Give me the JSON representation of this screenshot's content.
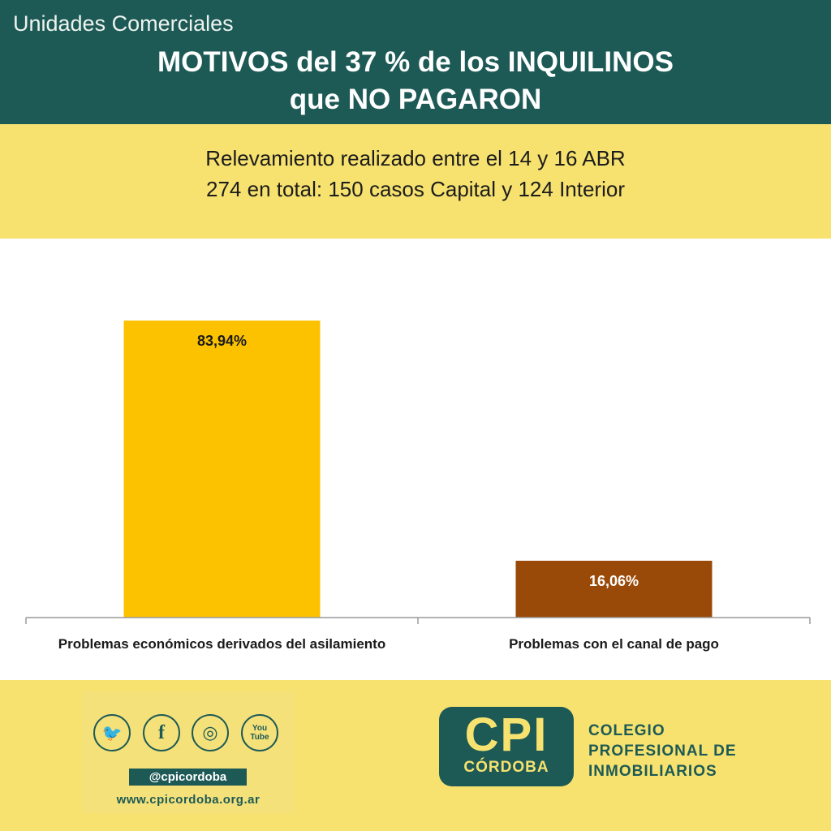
{
  "header": {
    "kicker": "Unidades Comerciales",
    "title_line1": "MOTIVOS del 37 % de los INQUILINOS",
    "title_line2": "que NO PAGARON",
    "background_color": "#1d5a56"
  },
  "subheader": {
    "line1": "Relevamiento realizado entre el 14 y 16 ABR",
    "line2": "274 en total: 150 casos Capital y 124 Interior",
    "background_color": "#f7e26f"
  },
  "chart_data": {
    "type": "bar",
    "categories": [
      "Problemas económicos derivados del asilamiento",
      "Problemas con el canal de pago"
    ],
    "values": [
      83.94,
      16.06
    ],
    "data_labels": [
      "83,94%",
      "16,06%"
    ],
    "colors": [
      "#fcc200",
      "#9a4a08"
    ],
    "label_colors": [
      "#1a1a1a",
      "#ffffff"
    ],
    "ylim": [
      0,
      100
    ],
    "grid": false,
    "legend": "none",
    "title": "",
    "xlabel": "",
    "ylabel": ""
  },
  "footer": {
    "social": {
      "icons": [
        "twitter-icon",
        "facebook-icon",
        "instagram-icon",
        "youtube-icon"
      ],
      "icon_glyphs": [
        "🐦",
        "f",
        "◎",
        "You Tube"
      ],
      "handle": "@cpicordoba",
      "website": "www.cpicordoba.org.ar"
    },
    "logo": {
      "acronym": "CPI",
      "city": "CÓRDOBA",
      "name_line1": "COLEGIO",
      "name_line2": "PROFESIONAL DE",
      "name_line3": "INMOBILIARIOS"
    }
  }
}
